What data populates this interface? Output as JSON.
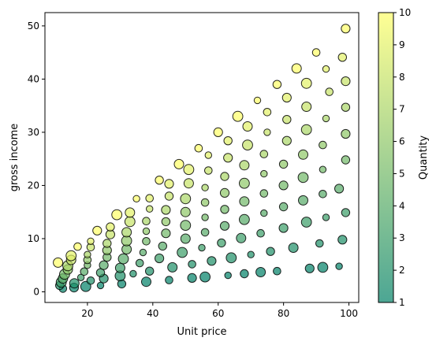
{
  "chart_data": {
    "type": "scatter",
    "title": "",
    "xlabel": "Unit price",
    "ylabel": "gross income",
    "xlim": [
      7,
      103
    ],
    "ylim": [
      -2,
      52.5
    ],
    "xticks": [
      "20",
      "40",
      "60",
      "80",
      "100"
    ],
    "yticks": [
      "0",
      "10",
      "20",
      "30",
      "40",
      "50"
    ],
    "grid": false,
    "colorbar": {
      "label": "Quantity",
      "range": [
        1,
        10
      ],
      "ticks": [
        "1",
        "2",
        "3",
        "4",
        "5",
        "6",
        "7",
        "8",
        "9",
        "10"
      ],
      "colormap": "summer",
      "colors": [
        "#008066",
        "#ffff66"
      ]
    },
    "marker_alpha": 0.7,
    "marker_edge": "#000000",
    "points": [
      {
        "x": 12.5,
        "y": 0.6,
        "q": 1
      },
      {
        "x": 15.9,
        "y": 0.8,
        "q": 1
      },
      {
        "x": 19.5,
        "y": 1.0,
        "q": 1
      },
      {
        "x": 24.0,
        "y": 1.2,
        "q": 1
      },
      {
        "x": 30.5,
        "y": 1.5,
        "q": 1
      },
      {
        "x": 38.0,
        "y": 1.9,
        "q": 1
      },
      {
        "x": 45.0,
        "y": 2.2,
        "q": 1
      },
      {
        "x": 52.0,
        "y": 2.6,
        "q": 1
      },
      {
        "x": 56.0,
        "y": 2.8,
        "q": 1
      },
      {
        "x": 63.0,
        "y": 3.1,
        "q": 1
      },
      {
        "x": 68.0,
        "y": 3.4,
        "q": 1
      },
      {
        "x": 73.0,
        "y": 3.7,
        "q": 1
      },
      {
        "x": 78.0,
        "y": 3.9,
        "q": 1
      },
      {
        "x": 88.0,
        "y": 4.4,
        "q": 1
      },
      {
        "x": 92.0,
        "y": 4.6,
        "q": 1
      },
      {
        "x": 97.0,
        "y": 4.8,
        "q": 1
      },
      {
        "x": 11.5,
        "y": 1.2,
        "q": 2
      },
      {
        "x": 16.0,
        "y": 1.6,
        "q": 2
      },
      {
        "x": 21.0,
        "y": 2.1,
        "q": 2
      },
      {
        "x": 25.0,
        "y": 2.5,
        "q": 2
      },
      {
        "x": 30.0,
        "y": 3.0,
        "q": 2
      },
      {
        "x": 34.0,
        "y": 3.4,
        "q": 2
      },
      {
        "x": 39.0,
        "y": 3.9,
        "q": 2
      },
      {
        "x": 46.0,
        "y": 4.6,
        "q": 2
      },
      {
        "x": 52.0,
        "y": 5.2,
        "q": 2
      },
      {
        "x": 58.0,
        "y": 5.8,
        "q": 2
      },
      {
        "x": 64.0,
        "y": 6.4,
        "q": 2
      },
      {
        "x": 70.0,
        "y": 7.0,
        "q": 2
      },
      {
        "x": 76.0,
        "y": 7.6,
        "q": 2
      },
      {
        "x": 83.0,
        "y": 8.3,
        "q": 2
      },
      {
        "x": 91.0,
        "y": 9.1,
        "q": 2
      },
      {
        "x": 98.0,
        "y": 9.8,
        "q": 2
      },
      {
        "x": 12.0,
        "y": 1.8,
        "q": 3
      },
      {
        "x": 18.0,
        "y": 2.7,
        "q": 3
      },
      {
        "x": 24.0,
        "y": 3.6,
        "q": 3
      },
      {
        "x": 30.0,
        "y": 4.5,
        "q": 3
      },
      {
        "x": 36.0,
        "y": 5.4,
        "q": 3
      },
      {
        "x": 42.0,
        "y": 6.3,
        "q": 3
      },
      {
        "x": 49.0,
        "y": 7.4,
        "q": 3
      },
      {
        "x": 55.0,
        "y": 8.3,
        "q": 3
      },
      {
        "x": 61.0,
        "y": 9.2,
        "q": 3
      },
      {
        "x": 67.0,
        "y": 10.1,
        "q": 3
      },
      {
        "x": 73.0,
        "y": 11.0,
        "q": 3
      },
      {
        "x": 80.0,
        "y": 12.0,
        "q": 3
      },
      {
        "x": 87.0,
        "y": 13.1,
        "q": 3
      },
      {
        "x": 93.0,
        "y": 14.0,
        "q": 3
      },
      {
        "x": 99.0,
        "y": 14.9,
        "q": 3
      },
      {
        "x": 12.5,
        "y": 2.5,
        "q": 4
      },
      {
        "x": 19.0,
        "y": 3.8,
        "q": 4
      },
      {
        "x": 25.0,
        "y": 5.0,
        "q": 4
      },
      {
        "x": 31.0,
        "y": 6.2,
        "q": 4
      },
      {
        "x": 37.0,
        "y": 7.4,
        "q": 4
      },
      {
        "x": 43.0,
        "y": 8.6,
        "q": 4
      },
      {
        "x": 50.0,
        "y": 10.0,
        "q": 4
      },
      {
        "x": 56.0,
        "y": 11.2,
        "q": 4
      },
      {
        "x": 62.0,
        "y": 12.4,
        "q": 4
      },
      {
        "x": 68.0,
        "y": 13.6,
        "q": 4
      },
      {
        "x": 74.0,
        "y": 14.8,
        "q": 4
      },
      {
        "x": 80.0,
        "y": 16.0,
        "q": 4
      },
      {
        "x": 86.0,
        "y": 17.2,
        "q": 4
      },
      {
        "x": 92.0,
        "y": 18.4,
        "q": 4
      },
      {
        "x": 97.0,
        "y": 19.4,
        "q": 4
      },
      {
        "x": 13.0,
        "y": 3.3,
        "q": 5
      },
      {
        "x": 20.0,
        "y": 5.0,
        "q": 5
      },
      {
        "x": 26.0,
        "y": 6.5,
        "q": 5
      },
      {
        "x": 32.0,
        "y": 8.0,
        "q": 5
      },
      {
        "x": 38.0,
        "y": 9.5,
        "q": 5
      },
      {
        "x": 44.0,
        "y": 11.0,
        "q": 5
      },
      {
        "x": 50.0,
        "y": 12.5,
        "q": 5
      },
      {
        "x": 56.0,
        "y": 14.0,
        "q": 5
      },
      {
        "x": 62.0,
        "y": 15.5,
        "q": 5
      },
      {
        "x": 68.0,
        "y": 17.0,
        "q": 5
      },
      {
        "x": 74.0,
        "y": 18.5,
        "q": 5
      },
      {
        "x": 80.0,
        "y": 20.0,
        "q": 5
      },
      {
        "x": 86.0,
        "y": 21.5,
        "q": 5
      },
      {
        "x": 92.0,
        "y": 23.0,
        "q": 5
      },
      {
        "x": 99.0,
        "y": 24.8,
        "q": 5
      },
      {
        "x": 14.0,
        "y": 4.2,
        "q": 6
      },
      {
        "x": 20.0,
        "y": 6.0,
        "q": 6
      },
      {
        "x": 26.0,
        "y": 7.8,
        "q": 6
      },
      {
        "x": 32.0,
        "y": 9.6,
        "q": 6
      },
      {
        "x": 38.0,
        "y": 11.4,
        "q": 6
      },
      {
        "x": 44.0,
        "y": 13.2,
        "q": 6
      },
      {
        "x": 50.0,
        "y": 15.0,
        "q": 6
      },
      {
        "x": 56.0,
        "y": 16.8,
        "q": 6
      },
      {
        "x": 62.0,
        "y": 18.6,
        "q": 6
      },
      {
        "x": 68.0,
        "y": 20.4,
        "q": 6
      },
      {
        "x": 74.0,
        "y": 22.2,
        "q": 6
      },
      {
        "x": 80.0,
        "y": 24.0,
        "q": 6
      },
      {
        "x": 86.0,
        "y": 25.8,
        "q": 6
      },
      {
        "x": 92.0,
        "y": 27.6,
        "q": 6
      },
      {
        "x": 99.0,
        "y": 29.7,
        "q": 6
      },
      {
        "x": 14.0,
        "y": 4.9,
        "q": 7
      },
      {
        "x": 20.0,
        "y": 7.0,
        "q": 7
      },
      {
        "x": 26.0,
        "y": 9.1,
        "q": 7
      },
      {
        "x": 32.0,
        "y": 11.2,
        "q": 7
      },
      {
        "x": 38.0,
        "y": 13.3,
        "q": 7
      },
      {
        "x": 44.0,
        "y": 15.4,
        "q": 7
      },
      {
        "x": 50.0,
        "y": 17.5,
        "q": 7
      },
      {
        "x": 56.0,
        "y": 19.6,
        "q": 7
      },
      {
        "x": 62.0,
        "y": 21.7,
        "q": 7
      },
      {
        "x": 68.0,
        "y": 23.8,
        "q": 7
      },
      {
        "x": 74.0,
        "y": 25.9,
        "q": 7
      },
      {
        "x": 81.0,
        "y": 28.4,
        "q": 7
      },
      {
        "x": 87.0,
        "y": 30.5,
        "q": 7
      },
      {
        "x": 93.0,
        "y": 32.6,
        "q": 7
      },
      {
        "x": 99.0,
        "y": 34.7,
        "q": 7
      },
      {
        "x": 15.0,
        "y": 6.0,
        "q": 8
      },
      {
        "x": 21.0,
        "y": 8.4,
        "q": 8
      },
      {
        "x": 27.0,
        "y": 10.8,
        "q": 8
      },
      {
        "x": 33.0,
        "y": 13.2,
        "q": 8
      },
      {
        "x": 39.0,
        "y": 15.6,
        "q": 8
      },
      {
        "x": 45.0,
        "y": 18.0,
        "q": 8
      },
      {
        "x": 51.0,
        "y": 20.4,
        "q": 8
      },
      {
        "x": 57.0,
        "y": 22.8,
        "q": 8
      },
      {
        "x": 63.0,
        "y": 25.2,
        "q": 8
      },
      {
        "x": 69.0,
        "y": 27.6,
        "q": 8
      },
      {
        "x": 75.0,
        "y": 30.0,
        "q": 8
      },
      {
        "x": 81.0,
        "y": 32.4,
        "q": 8
      },
      {
        "x": 87.0,
        "y": 34.8,
        "q": 8
      },
      {
        "x": 94.0,
        "y": 37.6,
        "q": 8
      },
      {
        "x": 99.0,
        "y": 39.6,
        "q": 8
      },
      {
        "x": 15.0,
        "y": 6.8,
        "q": 9
      },
      {
        "x": 21.0,
        "y": 9.5,
        "q": 9
      },
      {
        "x": 27.0,
        "y": 12.2,
        "q": 9
      },
      {
        "x": 33.0,
        "y": 14.9,
        "q": 9
      },
      {
        "x": 39.0,
        "y": 17.6,
        "q": 9
      },
      {
        "x": 45.0,
        "y": 20.3,
        "q": 9
      },
      {
        "x": 51.0,
        "y": 23.0,
        "q": 9
      },
      {
        "x": 57.0,
        "y": 25.7,
        "q": 9
      },
      {
        "x": 63.0,
        "y": 28.4,
        "q": 9
      },
      {
        "x": 69.0,
        "y": 31.1,
        "q": 9
      },
      {
        "x": 75.0,
        "y": 33.8,
        "q": 9
      },
      {
        "x": 81.0,
        "y": 36.5,
        "q": 9
      },
      {
        "x": 87.0,
        "y": 39.2,
        "q": 9
      },
      {
        "x": 93.0,
        "y": 41.9,
        "q": 9
      },
      {
        "x": 98.0,
        "y": 44.1,
        "q": 9
      },
      {
        "x": 11.0,
        "y": 5.5,
        "q": 10
      },
      {
        "x": 17.0,
        "y": 8.5,
        "q": 10
      },
      {
        "x": 23.0,
        "y": 11.5,
        "q": 10
      },
      {
        "x": 29.0,
        "y": 14.5,
        "q": 10
      },
      {
        "x": 35.0,
        "y": 17.5,
        "q": 10
      },
      {
        "x": 42.0,
        "y": 21.0,
        "q": 10
      },
      {
        "x": 48.0,
        "y": 24.0,
        "q": 10
      },
      {
        "x": 54.0,
        "y": 27.0,
        "q": 10
      },
      {
        "x": 60.0,
        "y": 30.0,
        "q": 10
      },
      {
        "x": 66.0,
        "y": 33.0,
        "q": 10
      },
      {
        "x": 72.0,
        "y": 36.0,
        "q": 10
      },
      {
        "x": 78.0,
        "y": 39.0,
        "q": 10
      },
      {
        "x": 84.0,
        "y": 42.0,
        "q": 10
      },
      {
        "x": 90.0,
        "y": 45.0,
        "q": 10
      },
      {
        "x": 99.0,
        "y": 49.5,
        "q": 10
      }
    ]
  }
}
